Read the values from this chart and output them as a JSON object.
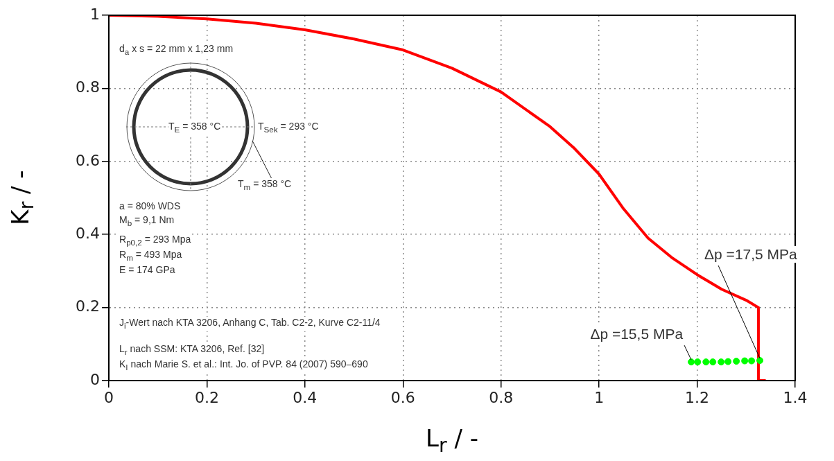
{
  "chart_data": {
    "type": "line",
    "xlabel": "L$_{r}$ / -",
    "ylabel": "K$_{r}$ / -",
    "xlim": [
      0,
      1.4
    ],
    "xticks": [
      0,
      0.2,
      0.4,
      0.6,
      0.8,
      1,
      1.2,
      1.4
    ],
    "ylim": [
      0,
      1
    ],
    "yticks": [
      0,
      0.2,
      0.4,
      0.6,
      0.8,
      1
    ],
    "grid": true,
    "series": [
      {
        "color": "#ff0000",
        "marker": "none",
        "line_style": "solid",
        "x": [
          0,
          0.1,
          0.2,
          0.3,
          0.4,
          0.5,
          0.6,
          0.7,
          0.8,
          0.9,
          0.95,
          1.0,
          1.05,
          1.1,
          1.15,
          1.2,
          1.25,
          1.3,
          1.325,
          1.325,
          1.34
        ],
        "values": [
          1,
          0.997,
          0.99,
          0.978,
          0.96,
          0.935,
          0.905,
          0.855,
          0.79,
          0.695,
          0.635,
          0.565,
          0.47,
          0.39,
          0.335,
          0.29,
          0.25,
          0.22,
          0.2,
          0,
          0
        ]
      },
      {
        "type": "scatter",
        "color": "#00ff00",
        "marker": "circle",
        "x": [
          1.188,
          1.201,
          1.218,
          1.232,
          1.249,
          1.263,
          1.28,
          1.297,
          1.311,
          1.328
        ],
        "values": [
          0.051,
          0.051,
          0.051,
          0.051,
          0.051,
          0.052,
          0.053,
          0.054,
          0.054,
          0.055
        ]
      }
    ],
    "annotations": [
      "d$_{a}$ x s = 22 mm x 1,23 mm",
      "T$_{E}$ = 358 °C",
      "T$_{Sek}$ = 293 °C",
      "T$_{m}$ = 358 °C",
      "a = 80% WDS",
      "M$_{b}$ = 9,1 Nm",
      "R$_{p0,2}$ = 293 Mpa",
      "R$_{m}$ = 493 Mpa",
      "E = 174 GPa",
      "J$_{i}$-Wert nach KTA 3206, Anhang C, Tab. C2-2, Kurve C2-11/4",
      "L$_{r}$ nach SSM: KTA 3206, Ref. [32]",
      "K$_{I}$ nach Marie S. et al.: Int. Jo. of PVP. 84 (2007) 590–690",
      {
        "text": "Δp =15,5 MPa",
        "x": 1.188,
        "y": 0.051
      },
      {
        "text": "Δp =17,5 MPa",
        "x": 1.328,
        "y": 0.055
      }
    ]
  }
}
